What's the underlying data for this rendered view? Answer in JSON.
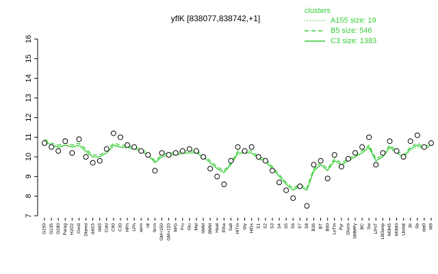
{
  "chart_data": {
    "type": "line",
    "title": "yflK [838077,838742,+1]",
    "legend_title": "clusters",
    "categories": [
      "G150",
      "G135",
      "G180",
      "Parag",
      "H2O2",
      "Oxctl",
      "Diamd",
      "dat15",
      "dat3",
      "Cold",
      "C90",
      "C30",
      "HPh",
      "LPh",
      "aero",
      "nit",
      "ferm",
      "GM+150",
      "GM+120",
      "M/G",
      "Fru",
      "Glu",
      "Mal",
      "SMM",
      "BMM",
      "Heat",
      "Etha",
      "Salt",
      "HiTm",
      "Gly",
      "HiOs",
      "S1",
      "S2",
      "S3",
      "S4",
      "S5",
      "S6",
      "S7",
      "S8",
      "B36",
      "BT",
      "B60",
      "LoTm",
      "Pyr",
      "Gluco",
      "SMMPy",
      "BC",
      "Sw",
      "LPhT",
      "LBGexp",
      "M0t45",
      "M0t90",
      "Lbstat",
      "BI",
      "Sb",
      "dat0",
      "M9"
    ],
    "points": [
      10.7,
      10.5,
      10.3,
      10.8,
      10.2,
      10.9,
      10.0,
      9.7,
      9.8,
      10.4,
      11.2,
      11.0,
      10.6,
      10.5,
      10.3,
      10.1,
      9.3,
      10.2,
      10.1,
      10.2,
      10.3,
      10.4,
      10.3,
      10.0,
      9.4,
      9.0,
      8.6,
      9.8,
      10.5,
      10.3,
      10.5,
      10.0,
      9.8,
      9.3,
      8.7,
      8.3,
      7.9,
      8.5,
      7.5,
      9.6,
      9.8,
      8.9,
      10.1,
      9.5,
      9.9,
      10.2,
      10.5,
      11.0,
      9.6,
      10.2,
      10.8,
      10.3,
      10.0,
      10.8,
      11.1,
      10.5,
      10.7
    ],
    "series": [
      {
        "name": "A155 size: 19",
        "color": "#33cc33",
        "dash": "1,3",
        "values": [
          10.7,
          10.6,
          10.4,
          10.6,
          10.5,
          10.5,
          10.2,
          10.0,
          10.0,
          10.2,
          10.5,
          10.5,
          10.4,
          10.4,
          10.3,
          10.0,
          9.8,
          10.0,
          10.1,
          10.1,
          10.1,
          10.2,
          10.2,
          10.0,
          9.7,
          9.4,
          9.3,
          9.6,
          10.1,
          10.2,
          10.2,
          9.9,
          9.7,
          9.4,
          9.0,
          8.7,
          8.4,
          8.5,
          8.4,
          9.2,
          9.6,
          9.3,
          9.8,
          9.6,
          9.8,
          10.0,
          10.2,
          10.4,
          9.8,
          10.0,
          10.4,
          10.2,
          10.0,
          10.3,
          10.5,
          10.4,
          10.6
        ]
      },
      {
        "name": "B5 size: 546",
        "color": "#33cc33",
        "dash": "6,4",
        "values": [
          10.9,
          10.7,
          10.6,
          10.7,
          10.6,
          10.7,
          10.4,
          10.1,
          10.1,
          10.3,
          10.7,
          10.6,
          10.6,
          10.5,
          10.4,
          10.2,
          9.8,
          10.1,
          10.2,
          10.2,
          10.3,
          10.3,
          10.3,
          10.1,
          9.8,
          9.5,
          9.3,
          9.7,
          10.3,
          10.3,
          10.3,
          10.0,
          9.9,
          9.5,
          9.1,
          8.7,
          8.4,
          8.6,
          8.4,
          9.4,
          9.7,
          9.4,
          9.9,
          9.7,
          9.9,
          10.1,
          10.3,
          10.6,
          9.9,
          10.1,
          10.6,
          10.3,
          10.1,
          10.5,
          10.7,
          10.5,
          10.7
        ]
      },
      {
        "name": "C3 size: 1383",
        "color": "#33cc33",
        "dash": "none",
        "values": [
          10.8,
          10.6,
          10.5,
          10.6,
          10.5,
          10.6,
          10.3,
          10.0,
          10.0,
          10.2,
          10.6,
          10.5,
          10.5,
          10.4,
          10.3,
          10.1,
          9.7,
          10.0,
          10.1,
          10.1,
          10.2,
          10.2,
          10.2,
          10.0,
          9.7,
          9.4,
          9.2,
          9.6,
          10.2,
          10.2,
          10.2,
          9.9,
          9.8,
          9.4,
          9.0,
          8.6,
          8.3,
          8.5,
          8.3,
          9.3,
          9.6,
          9.3,
          9.8,
          9.6,
          9.8,
          10.0,
          10.2,
          10.5,
          9.8,
          10.0,
          10.5,
          10.2,
          10.0,
          10.4,
          10.6,
          10.4,
          10.6
        ]
      }
    ],
    "ylim": [
      7,
      16
    ],
    "yticks": [
      7,
      8,
      9,
      10,
      11,
      12,
      13,
      14,
      15,
      16
    ]
  }
}
